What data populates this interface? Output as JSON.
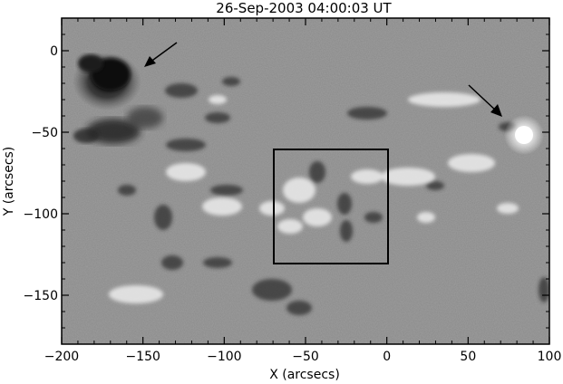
{
  "title": "26-Sep-2003   04:00:03 UT",
  "x_axis": {
    "label": "X (arcsecs)",
    "range": [
      -200,
      100
    ],
    "major_ticks": [
      -200,
      -150,
      -100,
      -50,
      0,
      50,
      100
    ],
    "tick_labels": [
      "−200",
      "−150",
      "−100",
      "−50",
      "0",
      "50",
      "100"
    ]
  },
  "y_axis": {
    "label": "Y (arcsecs)",
    "range": [
      -180,
      20
    ],
    "major_ticks": [
      0,
      -50,
      -100,
      -150
    ],
    "tick_labels": [
      "0",
      "−50",
      "−100",
      "−150"
    ]
  },
  "image": {
    "type": "magnetogram",
    "background_color": "#8a8a8a"
  },
  "annotations": {
    "box_region": {
      "x": [
        -70,
        0
      ],
      "y": [
        -130,
        -60
      ]
    },
    "arrows": [
      {
        "name": "arrow-left-sunspot",
        "from": [
          -128,
          8
        ],
        "to": [
          -150,
          -9
        ]
      },
      {
        "name": "arrow-right-bright",
        "from": [
          50,
          -20
        ],
        "to": [
          70,
          -40
        ]
      }
    ]
  }
}
